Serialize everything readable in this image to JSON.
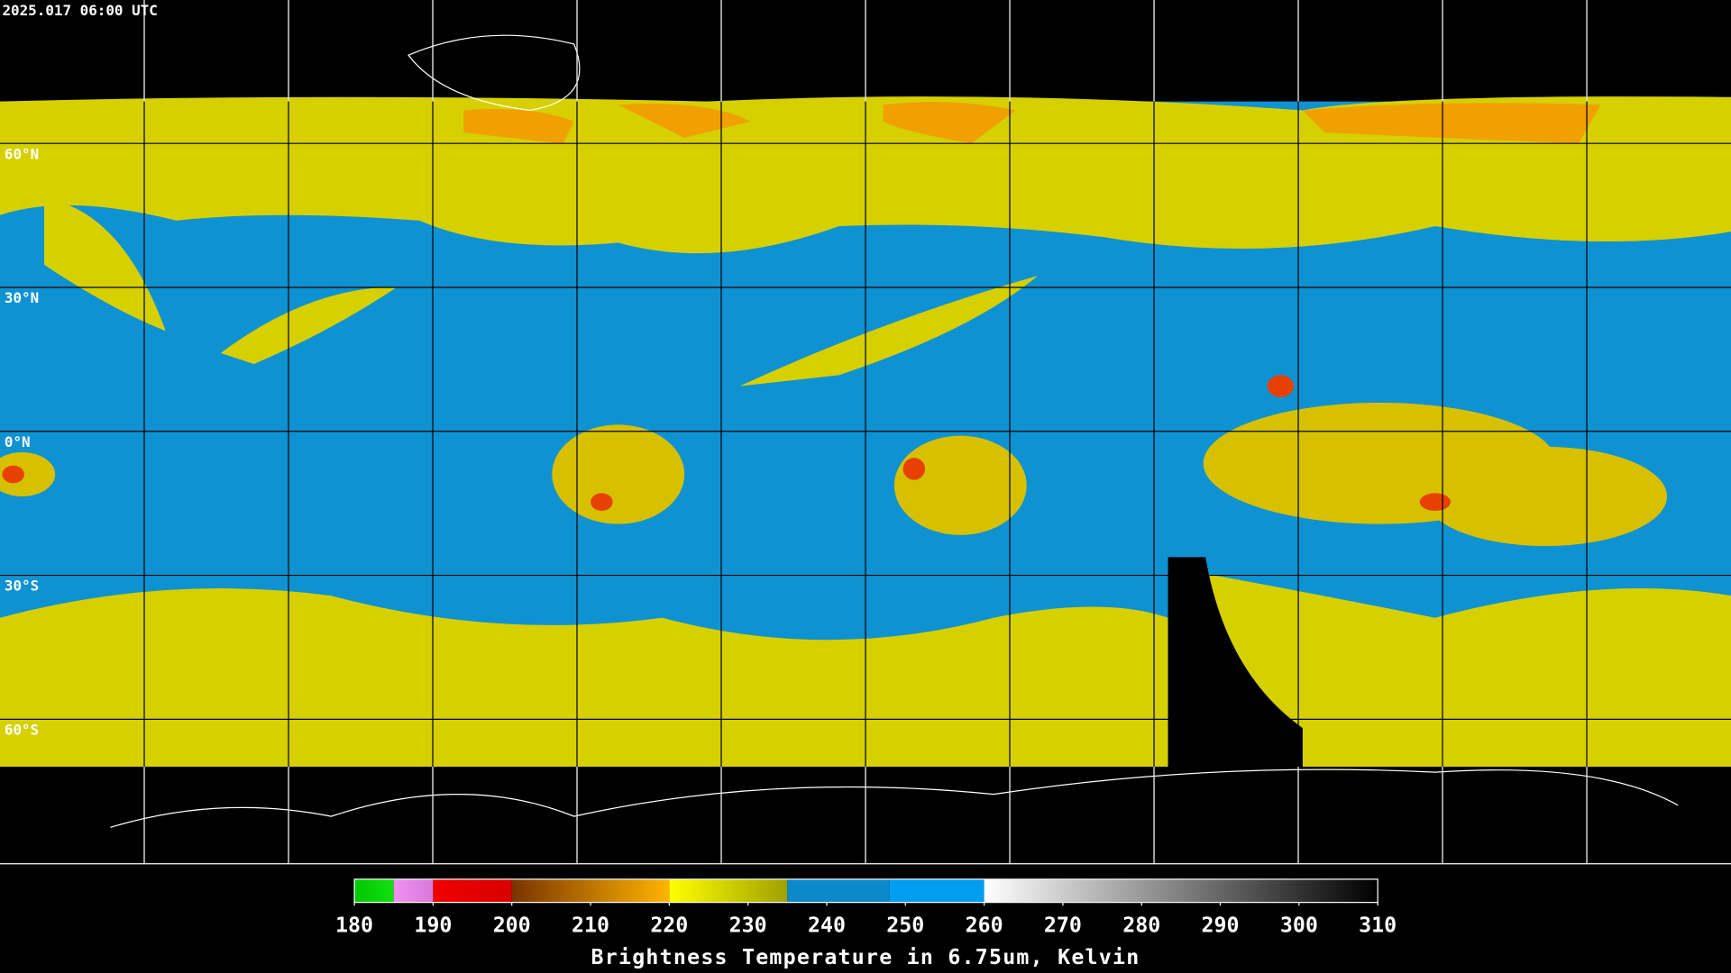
{
  "header": {
    "timestamp": "2025.017 06:00 UTC"
  },
  "latitudes": [
    {
      "value": 60,
      "label": "60°N"
    },
    {
      "value": 30,
      "label": "30°N"
    },
    {
      "value": 0,
      "label": "0°N"
    },
    {
      "value": -30,
      "label": "30°S"
    },
    {
      "value": -60,
      "label": "60°S"
    }
  ],
  "colorbar": {
    "title": "Brightness Temperature in 6.75um, Kelvin",
    "lim": [
      180,
      310
    ],
    "ticks": [
      180,
      190,
      200,
      210,
      220,
      230,
      240,
      250,
      260,
      270,
      280,
      290,
      300,
      310
    ],
    "segments": [
      {
        "from": 180,
        "to": 185,
        "colors": [
          "#00c800",
          "#10e010"
        ]
      },
      {
        "from": 185,
        "to": 190,
        "colors": [
          "#f090f0",
          "#d878d8"
        ]
      },
      {
        "from": 190,
        "to": 200,
        "colors": [
          "#f00000",
          "#d80000"
        ]
      },
      {
        "from": 200,
        "to": 220,
        "colors": [
          "#7a3400",
          "#ffb400"
        ]
      },
      {
        "from": 220,
        "to": 235,
        "colors": [
          "#ffff00",
          "#a0a000"
        ]
      },
      {
        "from": 235,
        "to": 248,
        "colors": [
          "#0a8acb",
          "#0a8acb"
        ]
      },
      {
        "from": 248,
        "to": 260,
        "colors": [
          "#009ef0",
          "#009ef0"
        ]
      },
      {
        "from": 260,
        "to": 310,
        "colors": [
          "#ffffff",
          "#000000"
        ]
      }
    ]
  }
}
